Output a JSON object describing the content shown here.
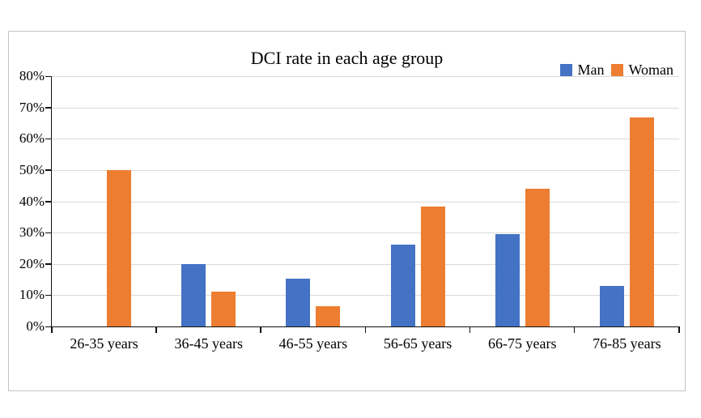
{
  "chart_data": {
    "type": "bar",
    "title": "DCI rate in each age group",
    "categories": [
      "26-35 years",
      "36-45 years",
      "46-55 years",
      "56-65 years",
      "66-75 years",
      "76-85 years"
    ],
    "series": [
      {
        "name": "Man",
        "color": "#4472C4",
        "values": [
          0,
          20,
          15.2,
          26.2,
          29.4,
          13
        ]
      },
      {
        "name": "Woman",
        "color": "#ED7D31",
        "values": [
          50,
          11.1,
          6.5,
          38.2,
          44.1,
          66.7
        ]
      }
    ],
    "xlabel": "",
    "ylabel": "",
    "ylim": [
      0,
      80
    ],
    "ytick_step": 10,
    "ytick_labels": [
      "0%",
      "10%",
      "20%",
      "30%",
      "40%",
      "50%",
      "60%",
      "70%",
      "80%"
    ],
    "grid": true,
    "legend_position": "top-right"
  }
}
